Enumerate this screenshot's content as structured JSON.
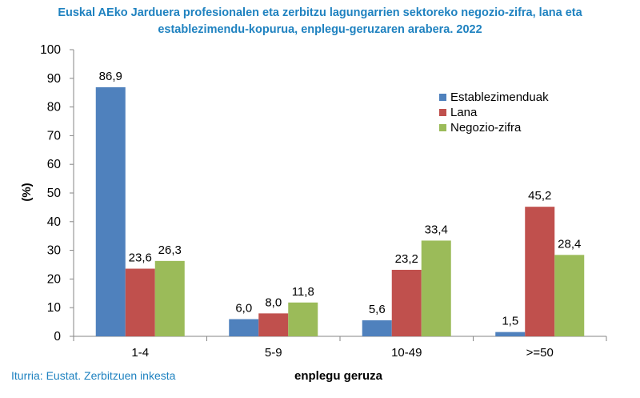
{
  "chart_data": {
    "type": "bar",
    "title": [
      "Euskal AEko Jarduera profesionalen eta zerbitzu lagungarrien sektoreko negozio-zifra, lana eta",
      "establezimendu-kopurua, enplegu-geruzaren arabera. 2022"
    ],
    "xlabel": "enplegu geruza",
    "ylabel": "(%)",
    "ylim": [
      0,
      100
    ],
    "yticks": [
      0,
      10,
      20,
      30,
      40,
      50,
      60,
      70,
      80,
      90,
      100
    ],
    "categories": [
      "1-4",
      "5-9",
      "10-49",
      ">=50"
    ],
    "series": [
      {
        "name": "Establezimenduak",
        "color": "#4f81bd",
        "values": [
          86.9,
          6.0,
          5.6,
          1.5
        ],
        "labels": [
          "86,9",
          "6,0",
          "5,6",
          "1,5"
        ]
      },
      {
        "name": "Lana",
        "color": "#c0504d",
        "values": [
          23.6,
          8.0,
          23.2,
          45.2
        ],
        "labels": [
          "23,6",
          "8,0",
          "23,2",
          "45,2"
        ]
      },
      {
        "name": "Negozio-zifra",
        "color": "#9bbb59",
        "values": [
          26.3,
          11.8,
          33.4,
          28.4
        ],
        "labels": [
          "26,3",
          "11,8",
          "33,4",
          "28,4"
        ]
      }
    ],
    "grid": false,
    "legend_position": "top-right",
    "source": "Iturria: Eustat. Zerbitzuen inkesta"
  }
}
